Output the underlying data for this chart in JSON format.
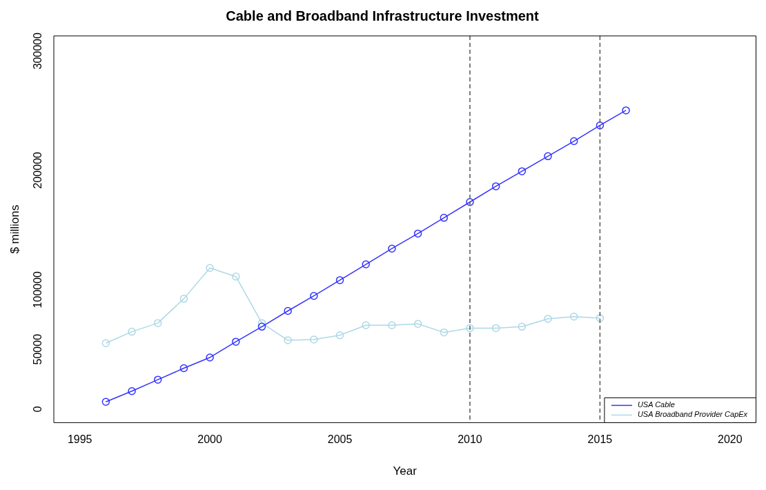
{
  "chart_data": {
    "type": "line",
    "title": "Cable and Broadband Infrastructure Investment",
    "xlabel": "Year",
    "ylabel": "$ millions",
    "x": [
      1996,
      1997,
      1998,
      1999,
      2000,
      2001,
      2002,
      2003,
      2004,
      2005,
      2006,
      2007,
      2008,
      2009,
      2010,
      2011,
      2012,
      2013,
      2014,
      2015,
      2016
    ],
    "series": [
      {
        "name": "USA Cable",
        "color": "#3333ff",
        "values": [
          6000,
          15000,
          24600,
          34200,
          43200,
          56400,
          69000,
          82200,
          94800,
          108000,
          121200,
          134400,
          147000,
          160200,
          173400,
          186600,
          199200,
          211800,
          224400,
          237600,
          250200
        ]
      },
      {
        "name": "USA Broadband Provider CapEx",
        "color": "#add8e6",
        "values": [
          55200,
          64800,
          72000,
          92400,
          118200,
          111000,
          72000,
          57600,
          58200,
          61800,
          70200,
          70200,
          71400,
          64200,
          67800,
          67800,
          69000,
          75600,
          77400,
          76200,
          null
        ]
      }
    ],
    "xlim": [
      1994,
      2021
    ],
    "xticks": [
      1995,
      2000,
      2005,
      2010,
      2015,
      2020
    ],
    "ylim": [
      -11400,
      312600
    ],
    "yticks": [
      0,
      50000,
      100000,
      200000,
      300000
    ],
    "ref_lines": [
      {
        "axis": "x",
        "value": 2010,
        "color": "#555555",
        "line_style": "dashed"
      },
      {
        "axis": "x",
        "value": 2015,
        "color": "#555555",
        "line_style": "dashed"
      }
    ],
    "legend": "bottom right",
    "marker": "circle",
    "line_style": "solid",
    "grid": false
  }
}
